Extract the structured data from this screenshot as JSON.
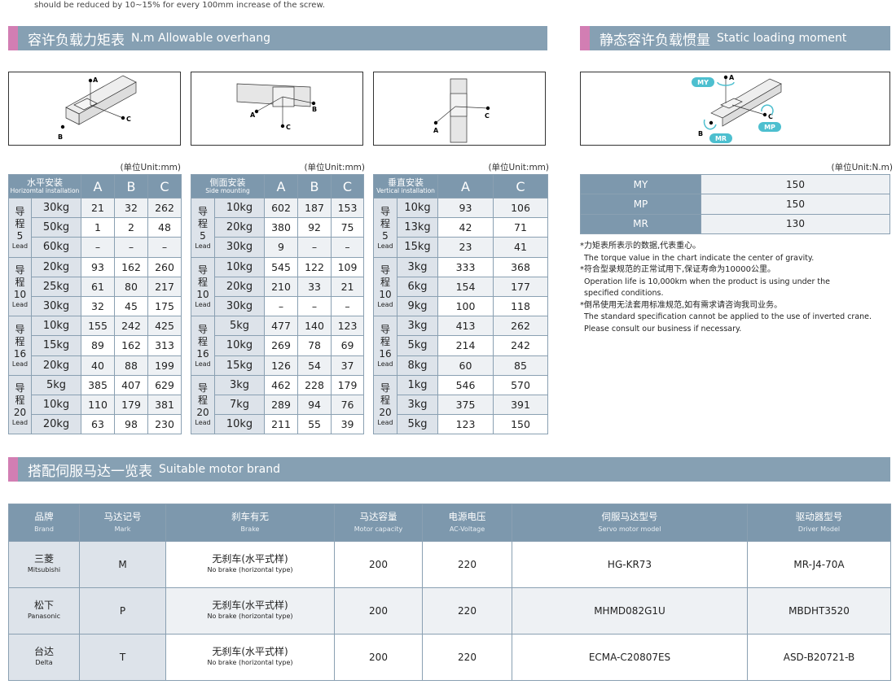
{
  "top_note": "should be reduced by 10~15% for every 100mm increase of the screw.",
  "sections": {
    "overhang": {
      "zh": "容许负载力矩表",
      "en": "N.m  Allowable overhang"
    },
    "static": {
      "zh": "静态容许负载惯量",
      "en": "Static loading moment"
    },
    "motor": {
      "zh": "搭配伺服马达一览表",
      "en": "Suitable motor brand"
    }
  },
  "diagram_labels": {
    "a": "A",
    "b": "B",
    "c": "C",
    "my": "MY",
    "mp": "MP",
    "mr": "MR"
  },
  "colors": {
    "header": "#7d98ad",
    "section_bar": "#86a0b3",
    "accent_pink": "#d27eb3",
    "arrow_cyan": "#4dbfcf",
    "light_cell": "#dde3ea"
  },
  "unit_mm": "(单位Unit:mm)",
  "unit_nm": "(单位Unit:N.m)",
  "lead_zh": "导程",
  "lead_en": "Lead",
  "load_tables": [
    {
      "title_zh": "水平安装",
      "title_en": "Horizomtal installation",
      "columns": [
        "A",
        "B",
        "C"
      ],
      "groups": [
        {
          "lead": "5",
          "rows": [
            [
              "30kg",
              "21",
              "32",
              "262"
            ],
            [
              "50kg",
              "1",
              "2",
              "48"
            ],
            [
              "60kg",
              "–",
              "–",
              "–"
            ]
          ]
        },
        {
          "lead": "10",
          "rows": [
            [
              "20kg",
              "93",
              "162",
              "260"
            ],
            [
              "25kg",
              "61",
              "80",
              "217"
            ],
            [
              "30kg",
              "32",
              "45",
              "175"
            ]
          ]
        },
        {
          "lead": "16",
          "rows": [
            [
              "10kg",
              "155",
              "242",
              "425"
            ],
            [
              "15kg",
              "89",
              "162",
              "313"
            ],
            [
              "20kg",
              "40",
              "88",
              "199"
            ]
          ]
        },
        {
          "lead": "20",
          "rows": [
            [
              "5kg",
              "385",
              "407",
              "629"
            ],
            [
              "10kg",
              "110",
              "179",
              "381"
            ],
            [
              "20kg",
              "63",
              "98",
              "230"
            ]
          ]
        }
      ]
    },
    {
      "title_zh": "侧面安装",
      "title_en": "Side mounting",
      "columns": [
        "A",
        "B",
        "C"
      ],
      "groups": [
        {
          "lead": "5",
          "rows": [
            [
              "10kg",
              "602",
              "187",
              "153"
            ],
            [
              "20kg",
              "380",
              "92",
              "75"
            ],
            [
              "30kg",
              "9",
              "–",
              "–"
            ]
          ]
        },
        {
          "lead": "10",
          "rows": [
            [
              "10kg",
              "545",
              "122",
              "109"
            ],
            [
              "20kg",
              "210",
              "33",
              "21"
            ],
            [
              "30kg",
              "–",
              "–",
              "–"
            ]
          ]
        },
        {
          "lead": "16",
          "rows": [
            [
              "5kg",
              "477",
              "140",
              "123"
            ],
            [
              "10kg",
              "269",
              "78",
              "69"
            ],
            [
              "15kg",
              "126",
              "54",
              "37"
            ]
          ]
        },
        {
          "lead": "20",
          "rows": [
            [
              "3kg",
              "462",
              "228",
              "179"
            ],
            [
              "7kg",
              "289",
              "94",
              "76"
            ],
            [
              "10kg",
              "211",
              "55",
              "39"
            ]
          ]
        }
      ]
    },
    {
      "title_zh": "垂直安装",
      "title_en": "Vertical installation",
      "columns": [
        "A",
        "C"
      ],
      "groups": [
        {
          "lead": "5",
          "rows": [
            [
              "10kg",
              "93",
              "106"
            ],
            [
              "13kg",
              "42",
              "71"
            ],
            [
              "15kg",
              "23",
              "41"
            ]
          ]
        },
        {
          "lead": "10",
          "rows": [
            [
              "3kg",
              "333",
              "368"
            ],
            [
              "6kg",
              "154",
              "177"
            ],
            [
              "9kg",
              "100",
              "118"
            ]
          ]
        },
        {
          "lead": "16",
          "rows": [
            [
              "3kg",
              "413",
              "262"
            ],
            [
              "5kg",
              "214",
              "242"
            ],
            [
              "8kg",
              "60",
              "85"
            ]
          ]
        },
        {
          "lead": "20",
          "rows": [
            [
              "1kg",
              "546",
              "570"
            ],
            [
              "3kg",
              "375",
              "391"
            ],
            [
              "5kg",
              "123",
              "150"
            ]
          ]
        }
      ]
    }
  ],
  "moments": [
    {
      "key": "MY",
      "value": "150"
    },
    {
      "key": "MP",
      "value": "150"
    },
    {
      "key": "MR",
      "value": "130"
    }
  ],
  "notes": [
    {
      "zh": "*力矩表所表示的数据,代表重心。",
      "en": [
        "The torque value in the chart indicate the center of gravity."
      ]
    },
    {
      "zh": "*符合型录规范的正常试用下,保证寿命为10000公里。",
      "en": [
        "Operation life is 10,000km when the product is using under the",
        "specified conditions."
      ]
    },
    {
      "zh": "*倒吊使用无法套用标准规范,如有需求请咨询我司业务。",
      "en": [
        "The standard specification cannot be applied to the use of inverted crane.",
        "Please consult our business if necessary."
      ]
    }
  ],
  "motor_table": {
    "headers": [
      {
        "zh": "品牌",
        "en": "Brand"
      },
      {
        "zh": "马达记号",
        "en": "Mark"
      },
      {
        "zh": "刹车有无",
        "en": "Brake"
      },
      {
        "zh": "马达容量",
        "en": "Motor capacity"
      },
      {
        "zh": "电源电压",
        "en": "AC-Voltage"
      },
      {
        "zh": "伺服马达型号",
        "en": "Servo motor model"
      },
      {
        "zh": "驱动器型号",
        "en": "Driver Model"
      }
    ],
    "rows": [
      {
        "brand_zh": "三菱",
        "brand_en": "Mitsubishi",
        "mark": "M",
        "brake_zh": "无刹车(水平式样)",
        "brake_en": "No brake (horizontal type)",
        "capacity": "200",
        "voltage": "220",
        "motor": "HG-KR73",
        "driver": "MR-J4-70A"
      },
      {
        "brand_zh": "松下",
        "brand_en": "Panasonic",
        "mark": "P",
        "brake_zh": "无刹车(水平式样)",
        "brake_en": "No brake (horizontal type)",
        "capacity": "200",
        "voltage": "220",
        "motor": "MHMD082G1U",
        "driver": "MBDHT3520"
      },
      {
        "brand_zh": "台达",
        "brand_en": "Delta",
        "mark": "T",
        "brake_zh": "无刹车(水平式样)",
        "brake_en": "No brake (horizontal type)",
        "capacity": "200",
        "voltage": "220",
        "motor": "ECMA-C20807ES",
        "driver": "ASD-B20721-B"
      }
    ]
  }
}
